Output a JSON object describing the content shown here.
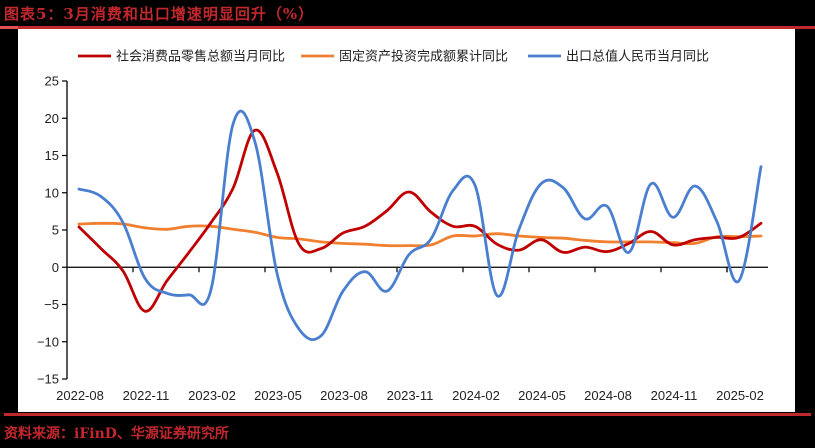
{
  "title": "图表5：3月消费和出口增速明显回升（%）",
  "source": "资料来源：iFinD、华源证券研究所",
  "colors": {
    "brand_red": "#c0282d",
    "retail": "#c00000",
    "fai": "#f08030",
    "exports": "#4a7fd0"
  },
  "chart_data": {
    "type": "line",
    "title": "3月消费和出口增速明显回升（%）",
    "xlabel": "",
    "ylabel": "%",
    "ylim": [
      -15,
      25
    ],
    "yticks": [
      25,
      20,
      15,
      10,
      5,
      0,
      -5,
      -10,
      -15
    ],
    "ytick_labels": [
      "25",
      "20",
      "15",
      "10",
      "5",
      "0",
      "−5",
      "−10",
      "−15"
    ],
    "grid": false,
    "legend_position": "top",
    "x": [
      "2022-08",
      "2022-09",
      "2022-10",
      "2022-11",
      "2022-12",
      "2023-01",
      "2023-02",
      "2023-03",
      "2023-04",
      "2023-05",
      "2023-06",
      "2023-07",
      "2023-08",
      "2023-09",
      "2023-10",
      "2023-11",
      "2023-12",
      "2024-01",
      "2024-02",
      "2024-03",
      "2024-04",
      "2024-05",
      "2024-06",
      "2024-07",
      "2024-08",
      "2024-09",
      "2024-10",
      "2024-11",
      "2024-12",
      "2025-01",
      "2025-02",
      "2025-03"
    ],
    "xtick_labels": [
      "2022-08",
      "2022-11",
      "2023-02",
      "2023-05",
      "2023-08",
      "2023-11",
      "2024-02",
      "2024-05",
      "2024-08",
      "2024-11",
      "2025-02"
    ],
    "series": [
      {
        "name": "社会消费品零售总额当月同比",
        "color": "#c00000",
        "values": [
          5.4,
          2.5,
          -0.5,
          -5.9,
          -1.8,
          2.0,
          6.0,
          10.6,
          18.4,
          12.7,
          3.1,
          2.5,
          4.6,
          5.5,
          7.6,
          10.1,
          7.4,
          5.5,
          5.5,
          3.1,
          2.3,
          3.7,
          2.0,
          2.7,
          2.1,
          3.2,
          4.8,
          3.0,
          3.7,
          4.0,
          4.0,
          5.9
        ]
      },
      {
        "name": "固定资产投资完成额累计同比",
        "color": "#f08030",
        "values": [
          5.8,
          5.9,
          5.8,
          5.3,
          5.1,
          5.5,
          5.5,
          5.1,
          4.7,
          4.0,
          3.8,
          3.4,
          3.2,
          3.1,
          2.9,
          2.9,
          3.0,
          4.2,
          4.2,
          4.5,
          4.2,
          4.0,
          3.9,
          3.6,
          3.4,
          3.4,
          3.4,
          3.3,
          3.2,
          4.1,
          4.1,
          4.2
        ]
      },
      {
        "name": "出口总值人民币当月同比",
        "color": "#4a7fd0",
        "values": [
          10.5,
          9.5,
          6.0,
          -1.5,
          -3.5,
          -3.7,
          -3.0,
          19.2,
          16.8,
          -0.8,
          -8.3,
          -9.2,
          -3.2,
          -0.6,
          -3.2,
          1.7,
          3.8,
          10.3,
          11.0,
          -3.8,
          5.1,
          11.2,
          10.7,
          6.5,
          8.2,
          2.0,
          11.2,
          6.7,
          10.9,
          6.1,
          -1.8,
          13.5
        ]
      }
    ]
  },
  "legend": [
    {
      "label": "社会消费品零售总额当月同比",
      "color": "#c00000"
    },
    {
      "label": "固定资产投资完成额累计同比",
      "color": "#f08030"
    },
    {
      "label": "出口总值人民币当月同比",
      "color": "#4a7fd0"
    }
  ]
}
